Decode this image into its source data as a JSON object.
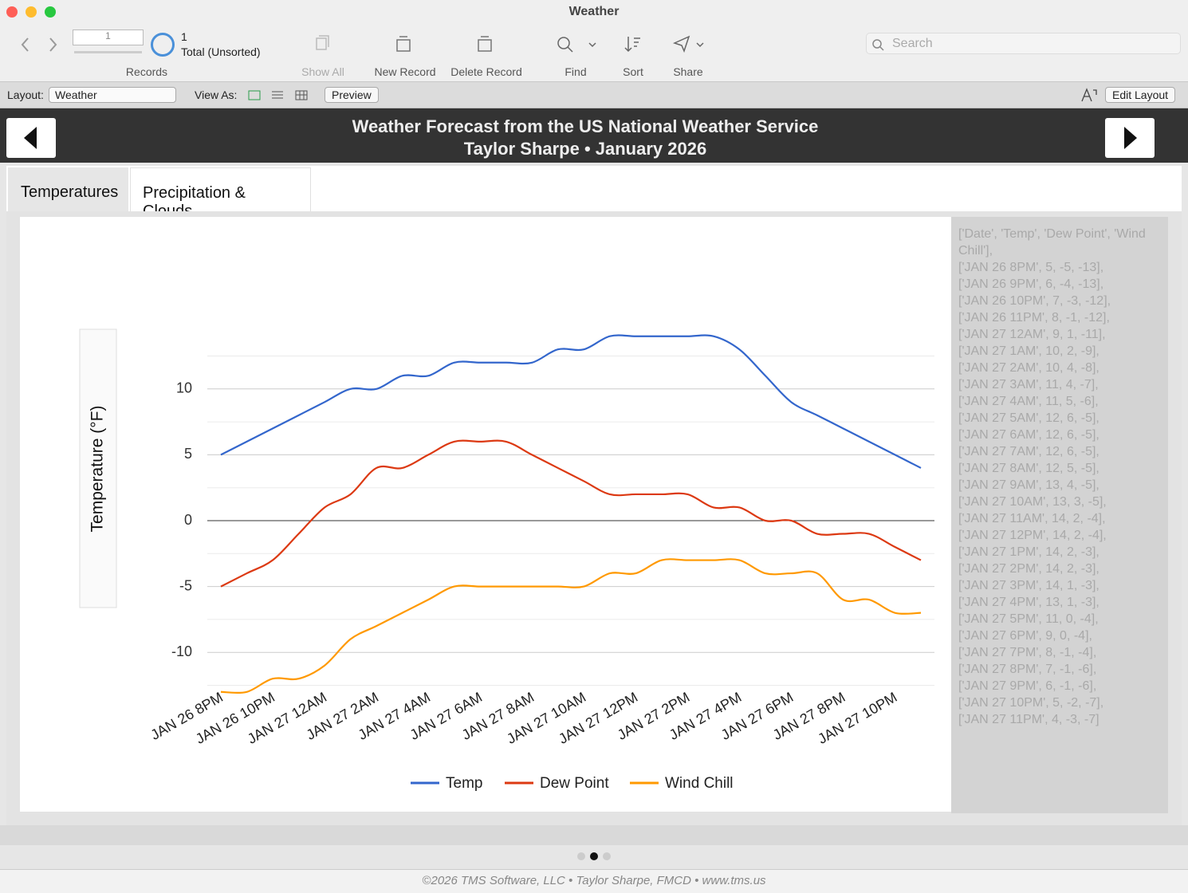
{
  "window": {
    "title": "Weather"
  },
  "toolbar": {
    "record_number": "1",
    "found_count": "1",
    "found_label": "Total (Unsorted)",
    "records_label": "Records",
    "buttons": [
      "Show All",
      "New Record",
      "Delete Record",
      "Find",
      "Sort",
      "Share"
    ],
    "search_placeholder": "Search"
  },
  "layout_bar": {
    "layout_label": "Layout:",
    "layout_name": "Weather",
    "view_as_label": "View As:",
    "preview": "Preview",
    "edit_layout": "Edit Layout"
  },
  "header": {
    "title": "Weather Forecast from the US National Weather Service",
    "subtitle": "Taylor Sharpe • January 2026"
  },
  "tabs": [
    "Temperatures",
    "Precipitation & Clouds"
  ],
  "chart_data": {
    "type": "line",
    "y_axis_label": "Temperature (°F)",
    "categories": [
      "JAN 26 8PM",
      null,
      "JAN 26 10PM",
      null,
      "JAN 27 12AM",
      null,
      "JAN 27 2AM",
      null,
      "JAN 27 4AM",
      null,
      "JAN 27 6AM",
      null,
      "JAN 27 8AM",
      null,
      "JAN 27 10AM",
      null,
      "JAN 27 12PM",
      null,
      "JAN 27 2PM",
      null,
      "JAN 27 4PM",
      null,
      "JAN 27 6PM",
      null,
      "JAN 27 8PM",
      null,
      "JAN 27 10PM",
      null
    ],
    "series": [
      {
        "name": "Temp",
        "color": "#3366cc",
        "values": [
          5,
          6,
          7,
          8,
          9,
          10,
          10,
          11,
          11,
          12,
          12,
          12,
          12,
          13,
          13,
          14,
          14,
          14,
          14,
          14,
          13,
          11,
          9,
          8,
          7,
          6,
          5,
          4
        ]
      },
      {
        "name": "Dew Point",
        "color": "#dc3912",
        "values": [
          -5,
          -4,
          -3,
          -1,
          1,
          2,
          4,
          4,
          5,
          6,
          6,
          6,
          5,
          4,
          3,
          2,
          2,
          2,
          2,
          1,
          1,
          0,
          0,
          -1,
          -1,
          -1,
          -2,
          -3
        ]
      },
      {
        "name": "Wind Chill",
        "color": "#ff9900",
        "values": [
          -13,
          -13,
          -12,
          -12,
          -11,
          -9,
          -8,
          -7,
          -6,
          -5,
          -5,
          -5,
          -5,
          -5,
          -5,
          -4,
          -4,
          -3,
          -3,
          -3,
          -3,
          -4,
          -4,
          -4,
          -6,
          -6,
          -7,
          -7
        ]
      }
    ],
    "ylim": [
      -12.5,
      12.5
    ],
    "yticks": [
      -10,
      -5,
      0,
      5,
      10
    ],
    "minor_yticks": [
      -12.5,
      -7.5,
      -2.5,
      2.5,
      7.5,
      12.5
    ],
    "grid": true,
    "legend": "bottom"
  },
  "data_panel": {
    "lines": [
      "['Date', 'Temp', 'Dew Point', 'Wind Chill'],",
      "['JAN 26 8PM', 5, -5, -13],",
      "['JAN 26 9PM', 6, -4, -13],",
      "['JAN 26 10PM', 7, -3, -12],",
      "['JAN 26 11PM', 8, -1, -12],",
      "['JAN 27 12AM', 9, 1, -11],",
      "['JAN 27 1AM', 10, 2, -9],",
      "['JAN 27 2AM', 10, 4, -8],",
      "['JAN 27 3AM', 11, 4, -7],",
      "['JAN 27 4AM', 11, 5, -6],",
      "['JAN 27 5AM', 12, 6, -5],",
      "['JAN 27 6AM', 12, 6, -5],",
      "['JAN 27 7AM', 12, 6, -5],",
      "['JAN 27 8AM', 12, 5, -5],",
      "['JAN 27 9AM', 13, 4, -5],",
      "['JAN 27 10AM', 13, 3, -5],",
      "['JAN 27 11AM', 14, 2, -4],",
      "['JAN 27 12PM', 14, 2, -4],",
      "['JAN 27 1PM', 14, 2, -3],",
      "['JAN 27 2PM', 14, 2, -3],",
      "['JAN 27 3PM', 14, 1, -3],",
      "['JAN 27 4PM', 13, 1, -3],",
      "['JAN 27 5PM', 11, 0, -4],",
      "['JAN 27 6PM', 9, 0, -4],",
      "['JAN 27 7PM', 8, -1, -4],",
      "['JAN 27 8PM', 7, -1, -6],",
      "['JAN 27 9PM', 6, -1, -6],",
      "['JAN 27 10PM', 5, -2, -7],",
      "['JAN 27 11PM', 4, -3, -7]"
    ]
  },
  "footer": "©2026 TMS Software, LLC • Taylor Sharpe, FMCD • www.tms.us"
}
